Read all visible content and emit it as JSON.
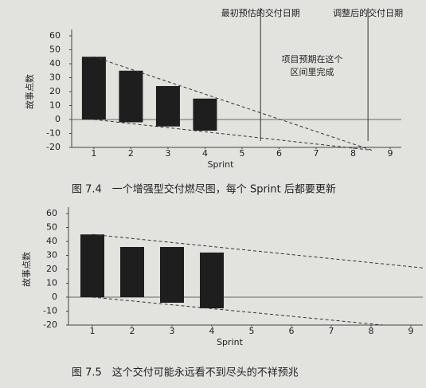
{
  "chart_data": [
    {
      "type": "floating-bar",
      "ylabel": "故事点数",
      "xlabel": "Sprint",
      "caption": "图 7.4　一个增强型交付燃尽图，每个 Sprint 后都要更新",
      "x": [
        1,
        2,
        3,
        4
      ],
      "high": [
        45,
        35,
        24,
        15
      ],
      "low": [
        0,
        -2,
        -5,
        -8
      ],
      "color": "#1e1e1e",
      "xlim": [
        0.4,
        9.3
      ],
      "xticks": [
        1,
        2,
        3,
        4,
        5,
        6,
        7,
        8,
        9
      ],
      "ylim": [
        -20,
        60
      ],
      "yticks": [
        -20,
        -10,
        0,
        10,
        20,
        30,
        40,
        50,
        60
      ],
      "trend_lines": [
        {
          "x": [
            1,
            8.5
          ],
          "y": [
            45,
            -22
          ]
        },
        {
          "x": [
            1,
            8.5
          ],
          "y": [
            0,
            -22
          ]
        }
      ],
      "markers": [
        {
          "x": 5.5,
          "label": "最初预估的交付日期",
          "style": "solid"
        },
        {
          "x": 8.4,
          "label": "调整后的交付日期",
          "style": "solid"
        }
      ],
      "annotation": [
        "项目预期在这个",
        "区间里完成"
      ]
    },
    {
      "type": "floating-bar",
      "ylabel": "故事点数",
      "xlabel": "Sprint",
      "caption": "图 7.5　这个交付可能永远看不到尽头的不祥预兆",
      "x": [
        1,
        2,
        3,
        4
      ],
      "high": [
        45,
        36,
        36,
        32
      ],
      "low": [
        0,
        0,
        -4,
        -8
      ],
      "color": "#1e1e1e",
      "xlim": [
        0.4,
        9.3
      ],
      "xticks": [
        1,
        2,
        3,
        4,
        5,
        6,
        7,
        8,
        9
      ],
      "ylim": [
        -20,
        60
      ],
      "yticks": [
        -20,
        -10,
        0,
        10,
        20,
        30,
        40,
        50,
        60
      ],
      "trend_lines": [
        {
          "x": [
            1,
            9.3
          ],
          "y": [
            45,
            21
          ]
        },
        {
          "x": [
            1,
            8.3
          ],
          "y": [
            0,
            -20
          ]
        }
      ]
    }
  ]
}
